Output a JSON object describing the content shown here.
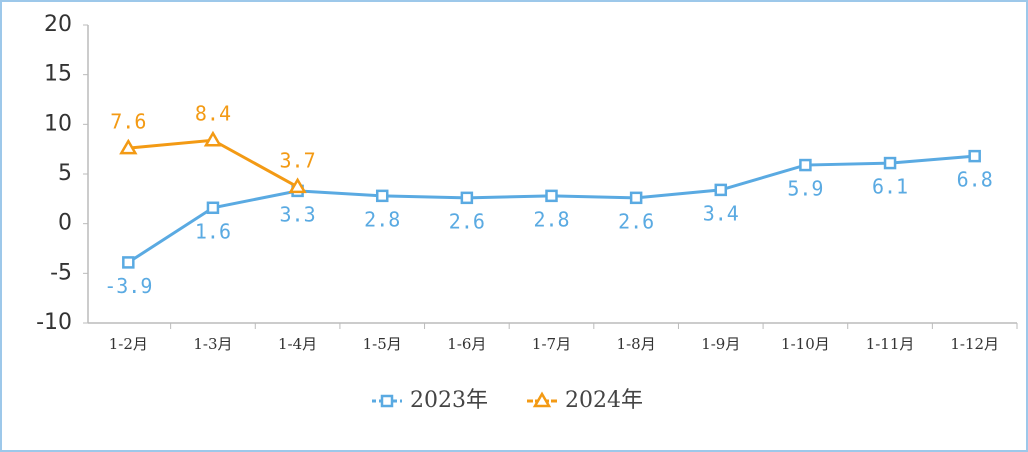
{
  "chart_data": {
    "type": "line",
    "categories": [
      "1-2月",
      "1-3月",
      "1-4月",
      "1-5月",
      "1-6月",
      "1-7月",
      "1-8月",
      "1-9月",
      "1-10月",
      "1-11月",
      "1-12月"
    ],
    "series": [
      {
        "name": "2023年",
        "color": "#5aaae2",
        "marker": "square",
        "values": [
          -3.9,
          1.6,
          3.3,
          2.8,
          2.6,
          2.8,
          2.6,
          3.4,
          5.9,
          6.1,
          6.8
        ]
      },
      {
        "name": "2024年",
        "color": "#f39a14",
        "marker": "triangle",
        "values": [
          7.6,
          8.4,
          3.7,
          null,
          null,
          null,
          null,
          null,
          null,
          null,
          null
        ]
      }
    ],
    "ylim": [
      -10,
      20
    ],
    "yticks": [
      -10,
      -5,
      0,
      5,
      10,
      15,
      20
    ],
    "grid": false,
    "legend": "bottom"
  }
}
